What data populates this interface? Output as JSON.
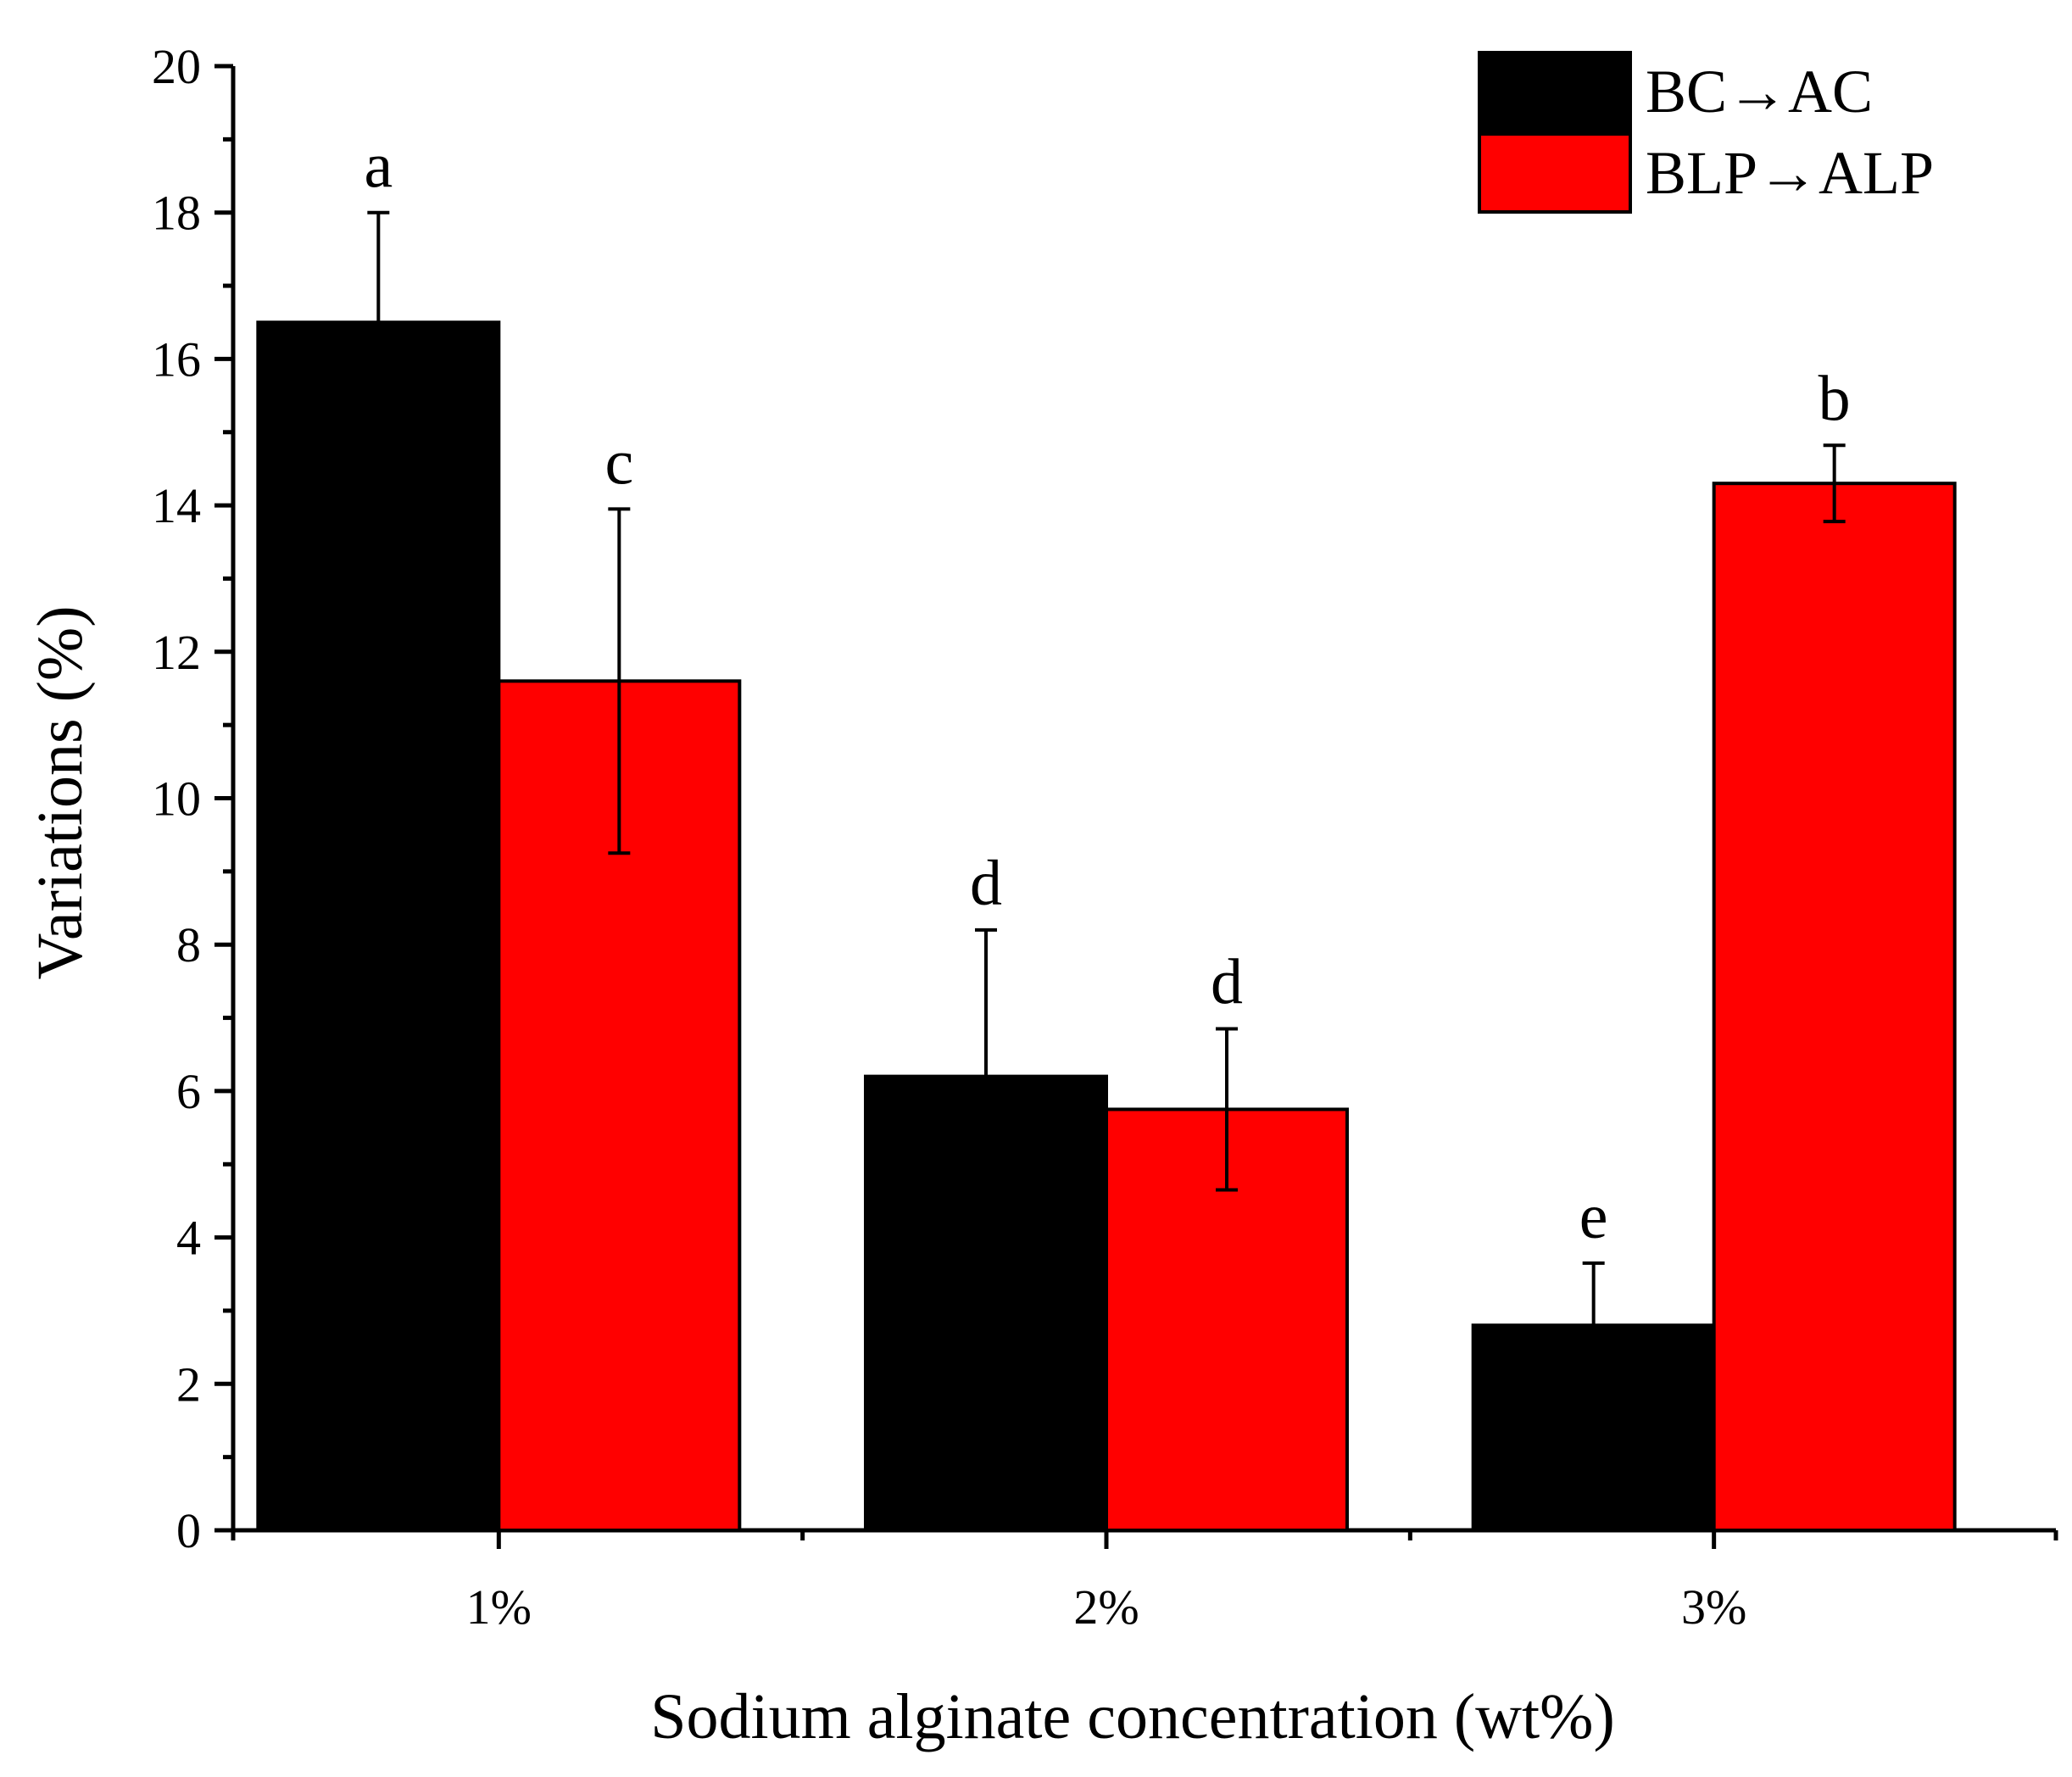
{
  "chart_data": {
    "type": "bar",
    "xlabel": "Sodium alginate concentration (wt%)",
    "ylabel": "Variations (%)",
    "ylim": [
      0,
      20
    ],
    "yticks": [
      0,
      2,
      4,
      6,
      8,
      10,
      12,
      14,
      16,
      18,
      20
    ],
    "categories": [
      "1%",
      "2%",
      "3%"
    ],
    "legend_position": "top-right",
    "series": [
      {
        "name": "BC→AC",
        "color": "#000000",
        "values": [
          16.5,
          6.2,
          2.8
        ],
        "errors": [
          1.5,
          2.0,
          0.85
        ],
        "letters": [
          "a",
          "d",
          "e"
        ]
      },
      {
        "name": "BLP→ALP",
        "color": "#ff0000",
        "values": [
          11.6,
          5.75,
          14.3
        ],
        "errors": [
          2.35,
          1.1,
          0.52
        ],
        "letters": [
          "c",
          "d",
          "b"
        ]
      }
    ]
  }
}
